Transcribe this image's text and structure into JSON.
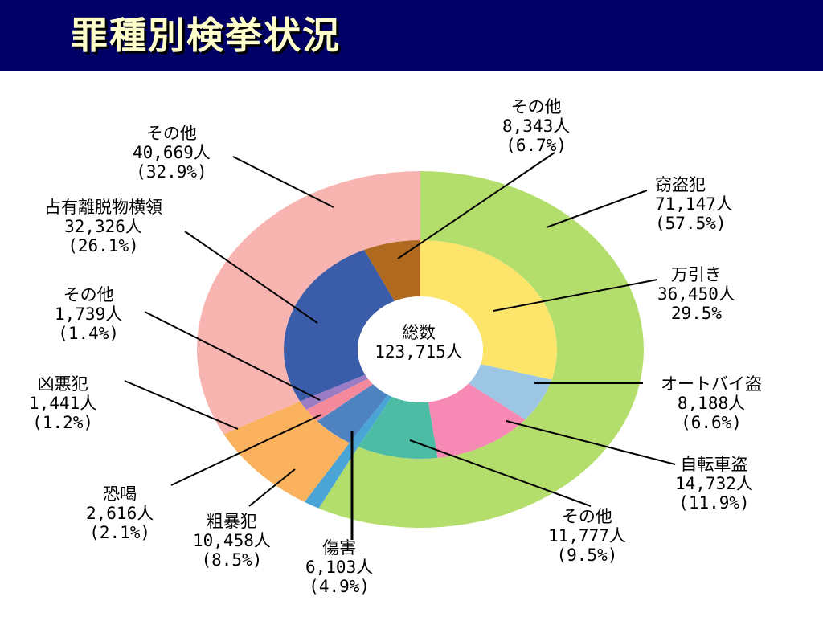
{
  "title": "罪種別検挙状況",
  "center": {
    "line1": "総数",
    "line2": "123,715人"
  },
  "chart_data": {
    "type": "pie",
    "total": {
      "label": "総数",
      "value": 123715,
      "unit": "人"
    },
    "outer": [
      {
        "name": "窃盗犯",
        "value": 71147,
        "value_text": "71,147人",
        "pct_text": "(57.5%)",
        "color": "#b4de6c"
      },
      {
        "name": "凶悪犯",
        "value": 1441,
        "value_text": "1,441人",
        "pct_text": "(1.2%)",
        "color": "#4aa5d6"
      },
      {
        "name": "粗暴犯",
        "value": 10458,
        "value_text": "10,458人",
        "pct_text": "(8.5%)",
        "color": "#fbb25e"
      },
      {
        "name": "その他",
        "value": 40669,
        "value_text": "40,669人",
        "pct_text": "(32.9%)",
        "color": "#f7b4b0"
      }
    ],
    "inner": [
      {
        "name": "万引き",
        "value": 36450,
        "value_text": "36,450人",
        "pct_text": "29.5%",
        "color": "#fde56c"
      },
      {
        "name": "オートバイ盗",
        "value": 8188,
        "value_text": "8,188人",
        "pct_text": "(6.6%)",
        "color": "#9cc6e4"
      },
      {
        "name": "自転車盗",
        "value": 14732,
        "value_text": "14,732人",
        "pct_text": "(11.9%)",
        "color": "#f78ab4"
      },
      {
        "name": "その他",
        "value": 11777,
        "value_text": "11,777人",
        "pct_text": "(9.5%)",
        "color": "#4cbca4"
      },
      {
        "name": "凶悪犯",
        "value": 1441,
        "value_text": "1,441人",
        "pct_text": "(1.2%)",
        "color": "#4aa5d6"
      },
      {
        "name": "傷害",
        "value": 6103,
        "value_text": "6,103人",
        "pct_text": "(4.9%)",
        "color": "#4e82c0"
      },
      {
        "name": "恐喝",
        "value": 2616,
        "value_text": "2,616人",
        "pct_text": "(2.1%)",
        "color": "#f48a9c"
      },
      {
        "name": "その他",
        "value": 1739,
        "value_text": "1,739人",
        "pct_text": "(1.4%)",
        "color": "#9c7cc4"
      },
      {
        "name": "占有離脱物横領",
        "value": 32326,
        "value_text": "32,326人",
        "pct_text": "(26.1%)",
        "color": "#3b5ca8"
      },
      {
        "name": "その他",
        "value": 8343,
        "value_text": "8,343人",
        "pct_text": "(6.7%)",
        "color": "#b06a20"
      }
    ]
  }
}
